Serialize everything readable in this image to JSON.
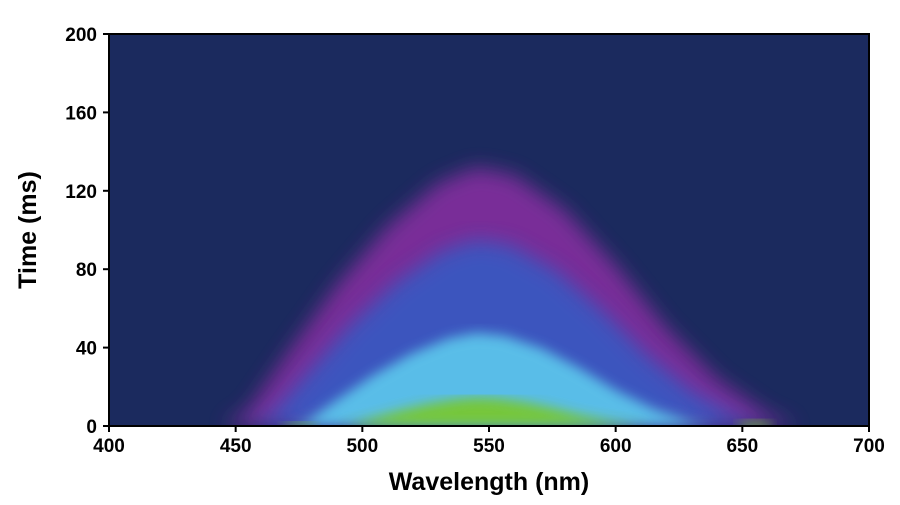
{
  "chart_data": {
    "type": "heatmap",
    "title": "",
    "xlabel": "Wavelength (nm)",
    "ylabel": "Time (ms)",
    "xlim": [
      400,
      700
    ],
    "ylim": [
      0,
      200
    ],
    "xticks": [
      400,
      450,
      500,
      550,
      600,
      650,
      700
    ],
    "yticks": [
      0,
      40,
      80,
      120,
      160,
      200
    ],
    "background_color": "#1b2a5e",
    "colormap": [
      "#1b2a5e",
      "#8a2fa3",
      "#2f5fc8",
      "#5fd0f0",
      "#78c832"
    ],
    "emission_envelope": {
      "x": [
        445,
        455,
        470,
        490,
        510,
        530,
        545,
        560,
        580,
        600,
        620,
        640,
        660,
        672
      ],
      "y": [
        0,
        8,
        36,
        72,
        102,
        124,
        132,
        128,
        110,
        82,
        50,
        24,
        6,
        0
      ]
    },
    "secondary_peaks": [
      {
        "center": 475,
        "height": 2
      },
      {
        "center": 655,
        "height": 3
      }
    ],
    "grid": false
  }
}
